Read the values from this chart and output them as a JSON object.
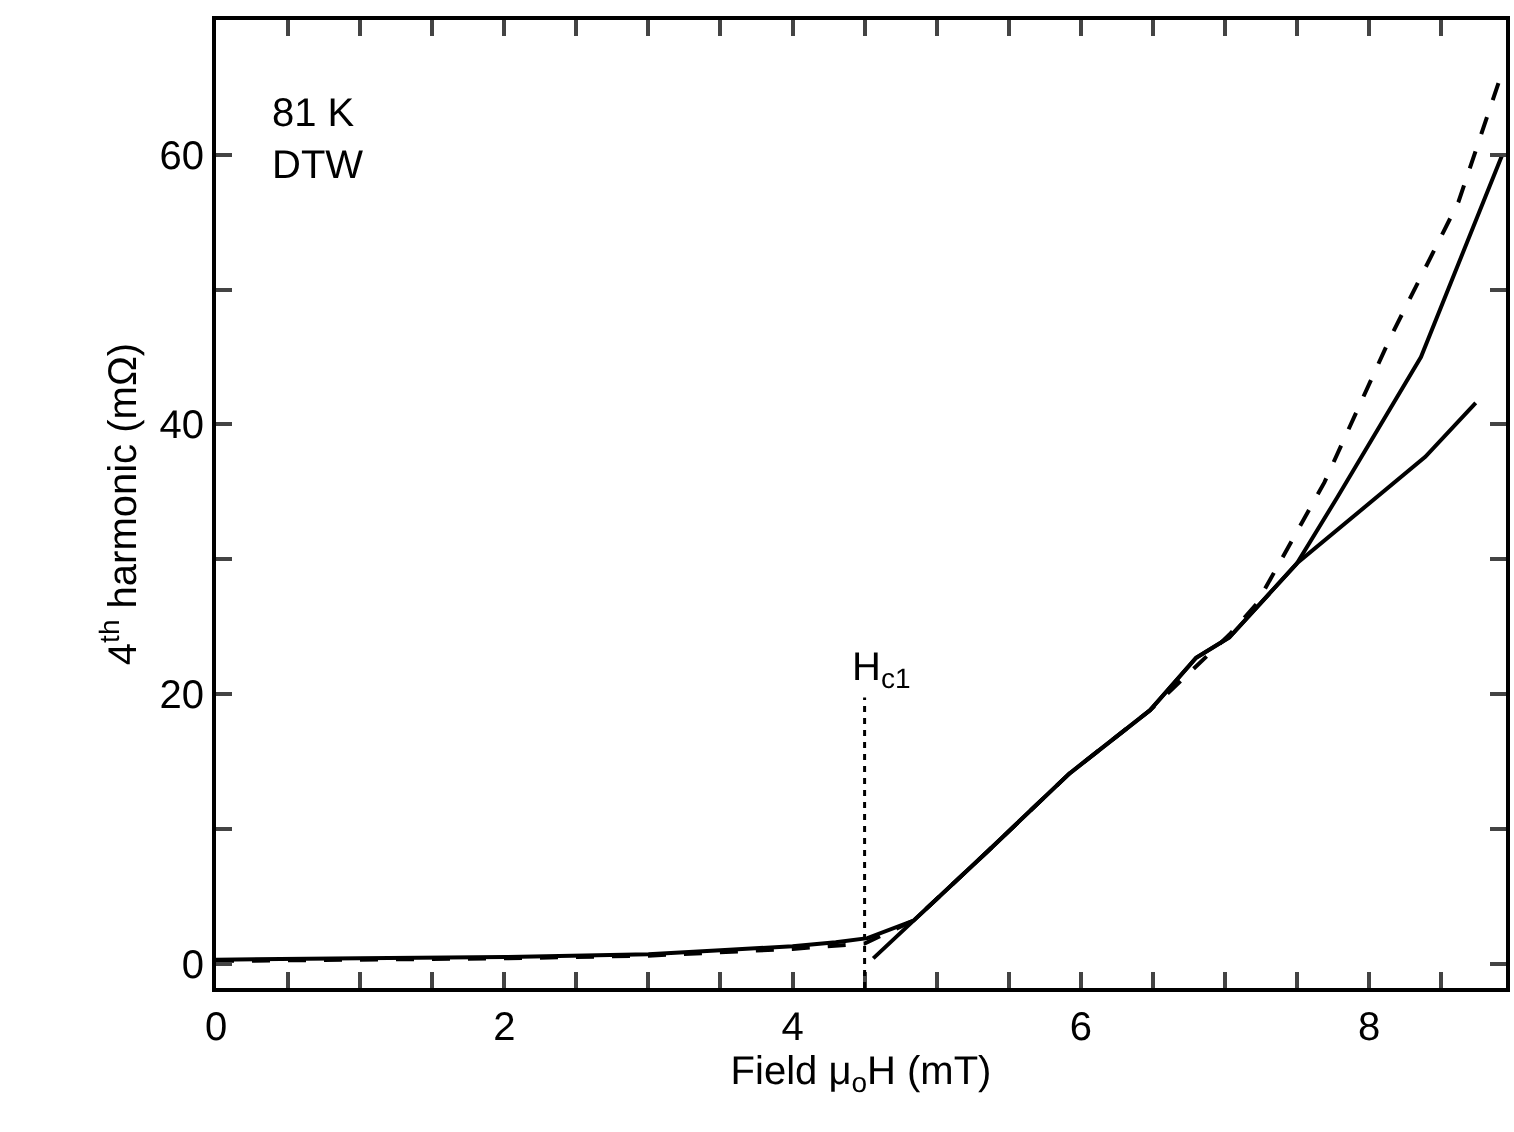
{
  "chart_data": {
    "type": "line",
    "xlabel": "Field μ$_{o}$H (mT)",
    "ylabel": "4$^{th}$ harmonic (mΩ)",
    "xlim": [
      0,
      8.95
    ],
    "ylim": [
      -1.8,
      70
    ],
    "xticks": [
      0,
      {
        "value": 0.5,
        "label": null
      },
      {
        "value": 1,
        "label": null
      },
      {
        "value": 1.5,
        "label": null
      },
      2,
      {
        "value": 2.5,
        "label": null
      },
      {
        "value": 3,
        "label": null
      },
      {
        "value": 3.5,
        "label": null
      },
      4,
      {
        "value": 4.5,
        "label": null
      },
      {
        "value": 5,
        "label": null
      },
      {
        "value": 5.5,
        "label": null
      },
      6,
      {
        "value": 6.5,
        "label": null
      },
      {
        "value": 7,
        "label": null
      },
      {
        "value": 7.5,
        "label": null
      },
      8,
      {
        "value": 8.5,
        "label": null
      }
    ],
    "yticks": [
      0,
      {
        "value": 10,
        "label": null
      },
      20,
      {
        "value": 30,
        "label": null
      },
      40,
      {
        "value": 50,
        "label": null
      },
      60
    ],
    "series": [
      {
        "color": "#000000",
        "line_style": "solid",
        "x": [
          0,
          1,
          2,
          3,
          3.5,
          4,
          4.3,
          4.52,
          4.84,
          5.36,
          5.92,
          6.48,
          6.8,
          7.03,
          7.5,
          7.78,
          8.36,
          8.92
        ],
        "values": [
          0.3,
          0.4,
          0.5,
          0.7,
          1,
          1.3,
          1.6,
          1.9,
          3.2,
          8.4,
          14.1,
          18.8,
          22.7,
          24.2,
          29.7,
          34.6,
          45,
          59.9
        ]
      },
      {
        "color": "#000000",
        "line_style": "solid",
        "x": [
          4.56,
          4.84,
          5.36,
          5.92,
          6.48,
          6.8,
          7.03,
          7.5,
          8.39,
          8.74
        ],
        "values": [
          0.4,
          3.2,
          8.4,
          14.1,
          18.8,
          22.7,
          24.2,
          29.7,
          37.6,
          41.6
        ]
      },
      {
        "color": "#000000",
        "line_style": "dashed",
        "x": [
          0,
          1,
          2,
          3,
          4,
          4.5,
          4.84,
          5.36,
          5.92,
          6.48,
          7.03,
          7.22,
          7.69,
          8.15,
          8.62,
          8.9
        ],
        "values": [
          0.2,
          0.3,
          0.4,
          0.6,
          1.1,
          1.5,
          3.2,
          8.4,
          14.1,
          18.8,
          24.4,
          26.7,
          35.7,
          46.5,
          56.5,
          65.4
        ]
      }
    ],
    "ref_lines": [
      {
        "axis": "x",
        "value": 4.5,
        "label": "H$_{c1}$",
        "line_style": "dotted"
      }
    ],
    "annotations": [
      "81 K\nDTW"
    ]
  }
}
